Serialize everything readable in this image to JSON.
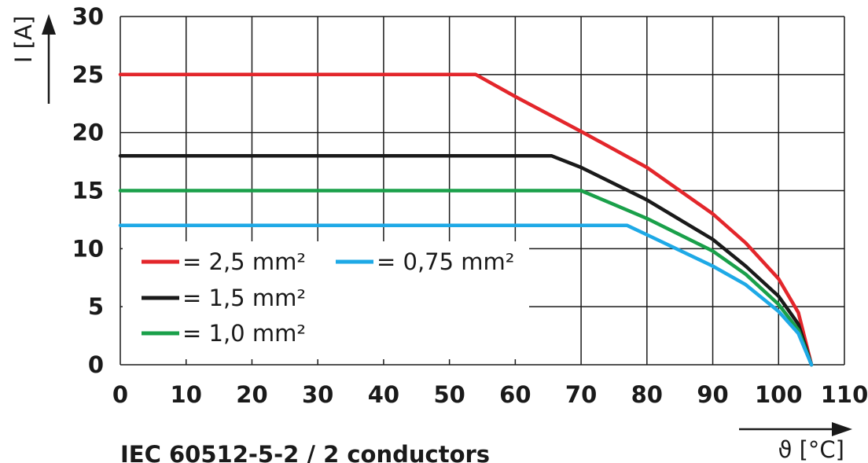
{
  "chart_data": {
    "type": "line",
    "caption": "IEC 60512-5-2 / 2 conductors",
    "xlabel": "ϑ [°C]",
    "ylabel": "I [A]",
    "xlim": [
      0,
      110
    ],
    "ylim": [
      0,
      30
    ],
    "x_ticks": [
      "0",
      "10",
      "20",
      "30",
      "40",
      "50",
      "60",
      "70",
      "80",
      "90",
      "100",
      "110"
    ],
    "y_ticks": [
      "0",
      "5",
      "10",
      "15",
      "20",
      "25",
      "30"
    ],
    "grid": true,
    "legend_position": "bottom-left",
    "series": [
      {
        "name": "= 2,5 mm²",
        "color": "#e3262b",
        "points": [
          [
            0,
            25
          ],
          [
            54,
            25
          ],
          [
            60,
            23.1
          ],
          [
            70,
            20.1
          ],
          [
            80,
            17
          ],
          [
            90,
            13
          ],
          [
            95,
            10.5
          ],
          [
            100,
            7.4
          ],
          [
            103,
            4.5
          ],
          [
            105,
            0
          ]
        ]
      },
      {
        "name": "= 1,5 mm²",
        "color": "#1a1a1a",
        "points": [
          [
            0,
            18
          ],
          [
            65.5,
            18
          ],
          [
            70,
            17
          ],
          [
            80,
            14.2
          ],
          [
            90,
            10.8
          ],
          [
            95,
            8.5
          ],
          [
            100,
            5.9
          ],
          [
            103,
            3.5
          ],
          [
            105,
            0
          ]
        ]
      },
      {
        "name": "= 1,0 mm²",
        "color": "#1aa04a",
        "points": [
          [
            0,
            15
          ],
          [
            70,
            15
          ],
          [
            75,
            13.8
          ],
          [
            80,
            12.6
          ],
          [
            90,
            9.8
          ],
          [
            95,
            7.8
          ],
          [
            100,
            5.2
          ],
          [
            103,
            3
          ],
          [
            105,
            0
          ]
        ]
      },
      {
        "name": "= 0,75 mm²",
        "color": "#1ea9e6",
        "points": [
          [
            0,
            12
          ],
          [
            77,
            12
          ],
          [
            80,
            11.2
          ],
          [
            90,
            8.5
          ],
          [
            95,
            6.9
          ],
          [
            100,
            4.6
          ],
          [
            103,
            2.7
          ],
          [
            105,
            0
          ]
        ]
      }
    ]
  }
}
